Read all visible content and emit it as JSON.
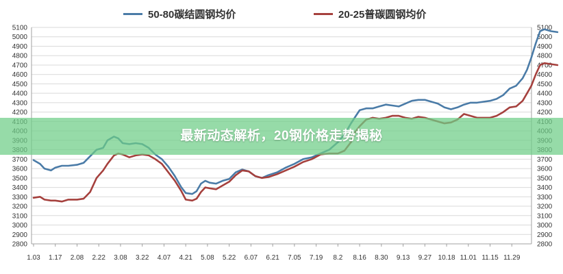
{
  "banner": {
    "text": "最新动态解析，20钢价格走势揭秘"
  },
  "chart_data": {
    "type": "line",
    "title": "",
    "xlabel": "",
    "ylabel": "",
    "ylim": [
      2800,
      5100
    ],
    "yticks": [
      2800,
      2900,
      3000,
      3100,
      3200,
      3300,
      3400,
      3500,
      3600,
      3700,
      3800,
      3900,
      4000,
      4100,
      4200,
      4300,
      4400,
      4500,
      4600,
      4700,
      4800,
      4900,
      5000,
      5100
    ],
    "x_ticks": [
      "1.03",
      "1.17",
      "2.08",
      "2.22",
      "3.08",
      "3.22",
      "4.07",
      "4.21",
      "5.08",
      "5.22",
      "6.07",
      "6.21",
      "7.05",
      "7.19",
      "8.2",
      "8.16",
      "8.30",
      "9.13",
      "9.27",
      "10.18",
      "11.01",
      "11.15",
      "11.29"
    ],
    "grid": true,
    "legend_position": "top",
    "series": [
      {
        "name": "50-80碳结圆钢均价",
        "color": "#4a7ba7",
        "points": [
          [
            0,
            3690
          ],
          [
            0.3,
            3650
          ],
          [
            0.5,
            3600
          ],
          [
            0.8,
            3580
          ],
          [
            1,
            3610
          ],
          [
            1.3,
            3630
          ],
          [
            1.6,
            3630
          ],
          [
            2,
            3640
          ],
          [
            2.3,
            3660
          ],
          [
            2.6,
            3730
          ],
          [
            2.9,
            3800
          ],
          [
            3.2,
            3820
          ],
          [
            3.4,
            3900
          ],
          [
            3.7,
            3940
          ],
          [
            3.9,
            3920
          ],
          [
            4.1,
            3870
          ],
          [
            4.4,
            3860
          ],
          [
            4.7,
            3870
          ],
          [
            5,
            3860
          ],
          [
            5.3,
            3820
          ],
          [
            5.6,
            3750
          ],
          [
            5.9,
            3700
          ],
          [
            6.2,
            3620
          ],
          [
            6.5,
            3520
          ],
          [
            6.8,
            3400
          ],
          [
            7,
            3340
          ],
          [
            7.3,
            3330
          ],
          [
            7.5,
            3360
          ],
          [
            7.7,
            3440
          ],
          [
            7.9,
            3470
          ],
          [
            8.1,
            3450
          ],
          [
            8.4,
            3440
          ],
          [
            8.7,
            3470
          ],
          [
            9,
            3490
          ],
          [
            9.3,
            3560
          ],
          [
            9.6,
            3590
          ],
          [
            9.9,
            3570
          ],
          [
            10.2,
            3520
          ],
          [
            10.5,
            3500
          ],
          [
            10.8,
            3530
          ],
          [
            11.2,
            3560
          ],
          [
            11.6,
            3610
          ],
          [
            12,
            3650
          ],
          [
            12.4,
            3700
          ],
          [
            12.8,
            3720
          ],
          [
            13.2,
            3760
          ],
          [
            13.6,
            3800
          ],
          [
            14,
            3880
          ],
          [
            14.3,
            3960
          ],
          [
            14.6,
            4080
          ],
          [
            14.8,
            4150
          ],
          [
            15,
            4220
          ],
          [
            15.3,
            4240
          ],
          [
            15.6,
            4240
          ],
          [
            15.9,
            4260
          ],
          [
            16.2,
            4280
          ],
          [
            16.5,
            4270
          ],
          [
            16.8,
            4260
          ],
          [
            17.1,
            4290
          ],
          [
            17.4,
            4320
          ],
          [
            17.7,
            4330
          ],
          [
            18,
            4330
          ],
          [
            18.3,
            4310
          ],
          [
            18.6,
            4290
          ],
          [
            18.9,
            4250
          ],
          [
            19.2,
            4230
          ],
          [
            19.5,
            4250
          ],
          [
            19.8,
            4280
          ],
          [
            20.1,
            4300
          ],
          [
            20.4,
            4300
          ],
          [
            20.7,
            4310
          ],
          [
            21,
            4320
          ],
          [
            21.3,
            4340
          ],
          [
            21.6,
            4380
          ],
          [
            21.9,
            4450
          ],
          [
            22.2,
            4480
          ],
          [
            22.5,
            4560
          ],
          [
            22.7,
            4650
          ],
          [
            22.9,
            4780
          ],
          [
            23.1,
            4930
          ],
          [
            23.3,
            5060
          ],
          [
            23.5,
            5080
          ],
          [
            23.8,
            5060
          ],
          [
            24.1,
            5050
          ]
        ]
      },
      {
        "name": "20-25普碳圆钢均价",
        "color": "#a5403d",
        "points": [
          [
            0,
            3290
          ],
          [
            0.3,
            3300
          ],
          [
            0.5,
            3270
          ],
          [
            0.8,
            3260
          ],
          [
            1,
            3260
          ],
          [
            1.3,
            3250
          ],
          [
            1.6,
            3270
          ],
          [
            2,
            3270
          ],
          [
            2.3,
            3280
          ],
          [
            2.6,
            3350
          ],
          [
            2.9,
            3500
          ],
          [
            3.2,
            3580
          ],
          [
            3.4,
            3650
          ],
          [
            3.7,
            3740
          ],
          [
            3.9,
            3760
          ],
          [
            4.1,
            3750
          ],
          [
            4.4,
            3720
          ],
          [
            4.7,
            3740
          ],
          [
            5,
            3750
          ],
          [
            5.3,
            3740
          ],
          [
            5.6,
            3700
          ],
          [
            5.9,
            3650
          ],
          [
            6.2,
            3560
          ],
          [
            6.5,
            3470
          ],
          [
            6.8,
            3360
          ],
          [
            7,
            3270
          ],
          [
            7.3,
            3260
          ],
          [
            7.5,
            3280
          ],
          [
            7.7,
            3350
          ],
          [
            7.9,
            3400
          ],
          [
            8.1,
            3390
          ],
          [
            8.4,
            3380
          ],
          [
            8.7,
            3420
          ],
          [
            9,
            3460
          ],
          [
            9.3,
            3530
          ],
          [
            9.6,
            3580
          ],
          [
            9.9,
            3570
          ],
          [
            10.2,
            3520
          ],
          [
            10.5,
            3500
          ],
          [
            10.8,
            3510
          ],
          [
            11.2,
            3540
          ],
          [
            11.6,
            3580
          ],
          [
            12,
            3620
          ],
          [
            12.4,
            3670
          ],
          [
            12.8,
            3700
          ],
          [
            13.2,
            3750
          ],
          [
            13.6,
            3760
          ],
          [
            14,
            3760
          ],
          [
            14.3,
            3790
          ],
          [
            14.6,
            3880
          ],
          [
            14.8,
            3990
          ],
          [
            15,
            4050
          ],
          [
            15.3,
            4120
          ],
          [
            15.6,
            4140
          ],
          [
            15.9,
            4130
          ],
          [
            16.2,
            4140
          ],
          [
            16.5,
            4160
          ],
          [
            16.8,
            4160
          ],
          [
            17.1,
            4140
          ],
          [
            17.4,
            4130
          ],
          [
            17.7,
            4150
          ],
          [
            18,
            4140
          ],
          [
            18.3,
            4120
          ],
          [
            18.6,
            4100
          ],
          [
            18.9,
            4080
          ],
          [
            19.2,
            4090
          ],
          [
            19.5,
            4120
          ],
          [
            19.8,
            4180
          ],
          [
            20.1,
            4160
          ],
          [
            20.4,
            4140
          ],
          [
            20.7,
            4140
          ],
          [
            21,
            4140
          ],
          [
            21.3,
            4160
          ],
          [
            21.6,
            4200
          ],
          [
            21.9,
            4250
          ],
          [
            22.2,
            4260
          ],
          [
            22.5,
            4320
          ],
          [
            22.7,
            4400
          ],
          [
            22.9,
            4480
          ],
          [
            23.1,
            4600
          ],
          [
            23.3,
            4700
          ],
          [
            23.5,
            4720
          ],
          [
            23.8,
            4710
          ],
          [
            24.1,
            4700
          ]
        ]
      }
    ]
  }
}
